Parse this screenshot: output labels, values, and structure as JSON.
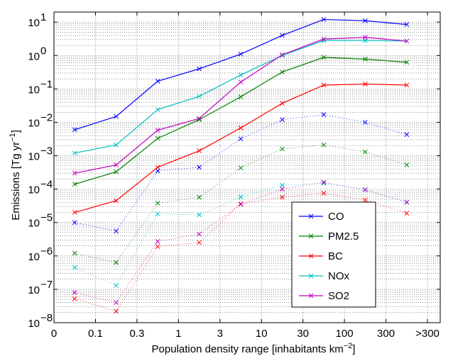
{
  "chart_data": {
    "type": "line",
    "xlabel": "Population density range [inhabitants km",
    "xlabel_sup": "−2",
    "xlabel_end": "]",
    "ylabel": "Emissions [Tg yr",
    "ylabel_sup": "−1",
    "ylabel_end": "]",
    "x_tick_labels": [
      "0",
      "0.1",
      "0.3",
      "1",
      "3",
      "10",
      "30",
      "100",
      "300",
      ">300"
    ],
    "y_scale": "log",
    "ylim": [
      1e-08,
      20
    ],
    "y_tick_labels": [
      {
        "base": "10",
        "exp": "1"
      },
      {
        "base": "10",
        "exp": "0"
      },
      {
        "base": "10",
        "exp": "−1"
      },
      {
        "base": "10",
        "exp": "−2"
      },
      {
        "base": "10",
        "exp": "−3"
      },
      {
        "base": "10",
        "exp": "−4"
      },
      {
        "base": "10",
        "exp": "−5"
      },
      {
        "base": "10",
        "exp": "−6"
      },
      {
        "base": "10",
        "exp": "−7"
      },
      {
        "base": "10",
        "exp": "−8"
      }
    ],
    "grid": true,
    "legend_position": "bottom-right",
    "series": [
      {
        "name": "CO",
        "color": "#0000ff",
        "values": [
          0.006,
          0.015,
          0.17,
          0.4,
          1.1,
          4.0,
          12,
          11,
          8.5
        ],
        "lower": [
          1e-05,
          5.5e-06,
          0.00035,
          0.00045,
          0.0032,
          0.012,
          0.017,
          0.01,
          0.0043
        ]
      },
      {
        "name": "PM2.5",
        "color": "#008000",
        "values": [
          0.00014,
          0.00033,
          0.0033,
          0.012,
          0.058,
          0.32,
          0.88,
          0.78,
          0.63
        ],
        "lower": [
          1.2e-06,
          6.3e-07,
          3.8e-05,
          5.7e-05,
          0.00043,
          0.0016,
          0.0021,
          0.0013,
          0.00053
        ]
      },
      {
        "name": "BC",
        "color": "#ff0000",
        "values": [
          2e-05,
          4.5e-05,
          0.00045,
          0.0014,
          0.0068,
          0.037,
          0.13,
          0.14,
          0.13
        ],
        "lower": [
          5.2e-08,
          2.2e-08,
          1.9e-06,
          2.5e-06,
          3.6e-05,
          5.7e-05,
          7.5e-05,
          4.7e-05,
          1.9e-05
        ]
      },
      {
        "name": "NOx",
        "color": "#00bfbf",
        "values": [
          0.0012,
          0.0021,
          0.024,
          0.06,
          0.26,
          1.0,
          2.8,
          2.8,
          2.7
        ],
        "lower": [
          4.5e-07,
          1.3e-07,
          1.8e-05,
          1.7e-05,
          5.8e-05,
          0.00013,
          0.00015,
          9.7e-05,
          4.1e-05
        ]
      },
      {
        "name": "SO2",
        "color": "#bf00bf",
        "values": [
          0.0003,
          0.00053,
          0.0058,
          0.013,
          0.16,
          1.05,
          3.1,
          3.5,
          2.7
        ],
        "lower": [
          8e-08,
          4e-08,
          2.7e-06,
          4.5e-06,
          3.5e-05,
          0.0001,
          0.00016,
          9.5e-05,
          4e-05
        ]
      }
    ]
  }
}
